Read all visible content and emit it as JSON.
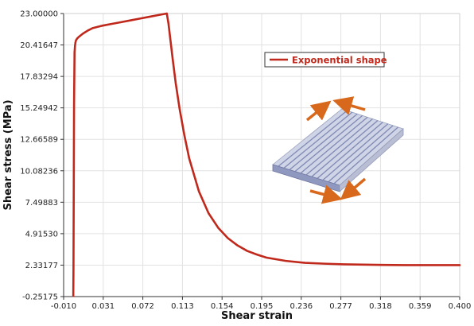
{
  "chart_data": {
    "type": "line",
    "title": "",
    "xlabel": "Shear strain",
    "ylabel": "Shear stress (MPa)",
    "xlim": [
      -0.01,
      0.4
    ],
    "ylim": [
      -0.25175,
      23.0
    ],
    "x_ticks": [
      "-0.010",
      "0.031",
      "0.072",
      "0.113",
      "0.154",
      "0.195",
      "0.236",
      "0.277",
      "0.318",
      "0.359",
      "0.400"
    ],
    "y_ticks": [
      "-0.25175",
      "2.33177",
      "4.91530",
      "7.49883",
      "10.08236",
      "12.66589",
      "15.24942",
      "17.83294",
      "20.41647",
      "23.00000"
    ],
    "grid": true,
    "legend_position": "top-right",
    "colors": {
      "series": "#c0281c",
      "grid": "#e2e2e2",
      "arrow": "#d8691c"
    },
    "series": [
      {
        "name": "Exponential shape",
        "x": [
          0.0,
          0.0002,
          0.0008,
          0.0013,
          0.0018,
          0.0022,
          0.0028,
          0.004,
          0.006,
          0.01,
          0.015,
          0.02,
          0.03,
          0.04,
          0.05,
          0.06,
          0.07,
          0.08,
          0.09,
          0.0968,
          0.0985,
          0.1,
          0.103,
          0.106,
          0.11,
          0.115,
          0.12,
          0.13,
          0.14,
          0.15,
          0.16,
          0.17,
          0.18,
          0.19,
          0.2,
          0.22,
          0.24,
          0.26,
          0.28,
          0.3,
          0.32,
          0.35,
          0.38,
          0.4
        ],
        "y": [
          -0.2,
          2.0,
          15.5,
          19.8,
          20.35,
          20.6,
          20.8,
          20.95,
          21.1,
          21.35,
          21.6,
          21.8,
          22.0,
          22.15,
          22.3,
          22.45,
          22.6,
          22.75,
          22.9,
          23.0,
          22.2,
          21.2,
          19.2,
          17.3,
          15.2,
          13.0,
          11.1,
          8.4,
          6.6,
          5.4,
          4.55,
          3.95,
          3.5,
          3.2,
          2.95,
          2.68,
          2.52,
          2.45,
          2.4,
          2.37,
          2.35,
          2.33,
          2.33,
          2.33
        ]
      }
    ]
  }
}
